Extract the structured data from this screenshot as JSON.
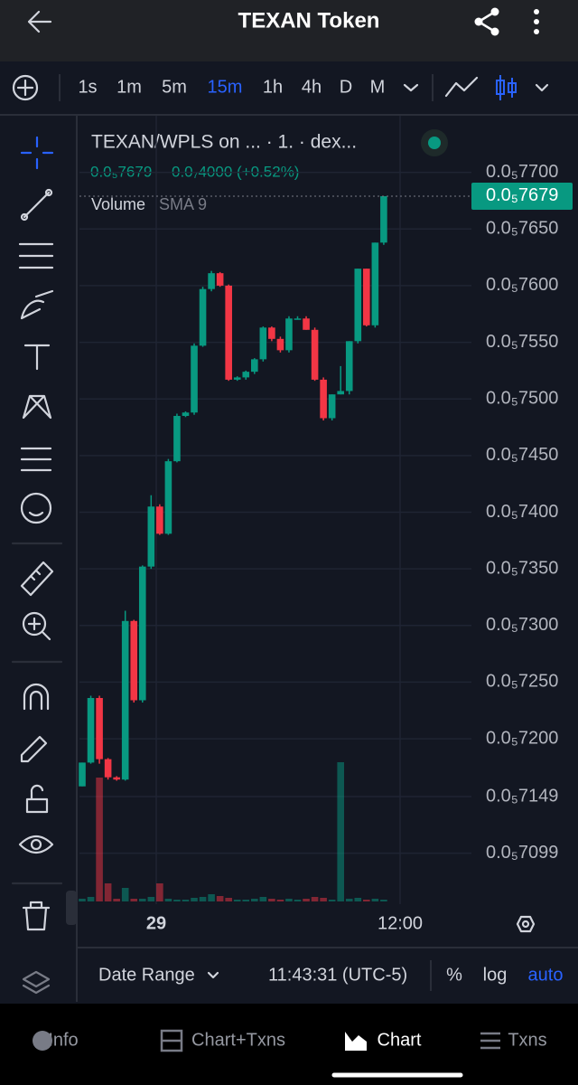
{
  "header": {
    "title": "TEXAN Token"
  },
  "toolbar": {
    "intervals": [
      "1s",
      "1m",
      "5m",
      "15m",
      "1h",
      "4h",
      "D",
      "M"
    ]
  },
  "chart_data": {
    "type": "candlestick",
    "title": "TEXAN/WPLS on ... · 1. · dex...",
    "change": "0.0₇4000 (+0.52%)",
    "indicator": "Volume",
    "indicator_setting": "SMA 9",
    "current_price": {
      "value": 7.679e-06,
      "label": "0.0₅7679"
    },
    "open": [
      7.158e-06,
      7.179e-06,
      7.236e-06,
      7.182e-06,
      7.166e-06,
      7.164e-06,
      7.304e-06,
      7.234e-06,
      7.352e-06,
      7.405e-06,
      7.381e-06,
      7.445e-06,
      7.485e-06,
      7.488e-06,
      7.547e-06,
      7.597e-06,
      7.611e-06,
      7.6e-06,
      7.517e-06,
      7.519e-06,
      7.524e-06,
      7.535e-06,
      7.563e-06,
      7.553e-06,
      7.543e-06,
      7.57e-06,
      7.571e-06,
      7.561e-06,
      7.517e-06,
      7.483e-06,
      7.504e-06,
      7.507e-06,
      7.551e-06,
      7.615e-06,
      7.565e-06,
      7.638e-06
    ],
    "high": [
      7.179e-06,
      7.238e-06,
      7.238e-06,
      7.183e-06,
      7.167e-06,
      7.313e-06,
      7.305e-06,
      7.353e-06,
      7.415e-06,
      7.407e-06,
      7.447e-06,
      7.487e-06,
      7.489e-06,
      7.549e-06,
      7.599e-06,
      7.613e-06,
      7.612e-06,
      7.601e-06,
      7.52e-06,
      7.525e-06,
      7.536e-06,
      7.564e-06,
      7.564e-06,
      7.555e-06,
      7.573e-06,
      7.573e-06,
      7.573e-06,
      7.563e-06,
      7.519e-06,
      7.504e-06,
      7.529e-06,
      7.551e-06,
      7.615e-06,
      7.615e-06,
      7.638e-06,
      7.679e-06
    ],
    "low": [
      7.158e-06,
      7.178e-06,
      7.178e-06,
      7.164e-06,
      7.163e-06,
      7.163e-06,
      7.232e-06,
      7.232e-06,
      7.35e-06,
      7.38e-06,
      7.38e-06,
      7.444e-06,
      7.484e-06,
      7.486e-06,
      7.546e-06,
      7.595e-06,
      7.599e-06,
      7.516e-06,
      7.516e-06,
      7.517e-06,
      7.522e-06,
      7.533e-06,
      7.551e-06,
      7.541e-06,
      7.541e-06,
      7.57e-06,
      7.561e-06,
      7.516e-06,
      7.481e-06,
      7.481e-06,
      7.504e-06,
      7.504e-06,
      7.549e-06,
      7.564e-06,
      7.563e-06,
      7.636e-06
    ],
    "close": [
      7.179e-06,
      7.236e-06,
      7.182e-06,
      7.166e-06,
      7.164e-06,
      7.304e-06,
      7.234e-06,
      7.352e-06,
      7.405e-06,
      7.381e-06,
      7.445e-06,
      7.485e-06,
      7.488e-06,
      7.547e-06,
      7.597e-06,
      7.611e-06,
      7.6e-06,
      7.517e-06,
      7.519e-06,
      7.524e-06,
      7.535e-06,
      7.563e-06,
      7.553e-06,
      7.543e-06,
      7.571e-06,
      7.571e-06,
      7.561e-06,
      7.517e-06,
      7.483e-06,
      7.504e-06,
      7.507e-06,
      7.551e-06,
      7.615e-06,
      7.565e-06,
      7.638e-06,
      7.679e-06
    ],
    "volume": [
      3,
      5,
      137,
      20,
      3,
      15,
      3,
      3,
      5,
      20,
      3,
      2,
      2,
      4,
      5,
      8,
      6,
      4,
      2,
      2,
      3,
      5,
      3,
      2,
      3,
      2,
      3,
      5,
      4,
      2,
      154,
      3,
      4,
      2,
      3,
      2
    ],
    "up_color": "#089981",
    "down_color": "#f23645",
    "ylim": [
      7.054e-06,
      7.75e-06
    ],
    "yticks": [
      {
        "value": 7.7e-06,
        "label": "0.0₅7700"
      },
      {
        "value": 7.65e-06,
        "label": "0.0₅7650"
      },
      {
        "value": 7.6e-06,
        "label": "0.0₅7600"
      },
      {
        "value": 7.55e-06,
        "label": "0.0₅7550"
      },
      {
        "value": 7.5e-06,
        "label": "0.0₅7500"
      },
      {
        "value": 7.45e-06,
        "label": "0.0₅7450"
      },
      {
        "value": 7.4e-06,
        "label": "0.0₅7400"
      },
      {
        "value": 7.35e-06,
        "label": "0.0₅7350"
      },
      {
        "value": 7.3e-06,
        "label": "0.0₅7300"
      },
      {
        "value": 7.25e-06,
        "label": "0.0₅7250"
      },
      {
        "value": 7.2e-06,
        "label": "0.0₅7200"
      },
      {
        "value": 7.149e-06,
        "label": "0.0₅7149"
      },
      {
        "value": 7.099e-06,
        "label": "0.0₅7099"
      }
    ],
    "x_labels": [
      "29",
      "12:00"
    ],
    "grid": true
  },
  "footer": {
    "date_range": "Date Range",
    "time": "11:43:31 (UTC-5)",
    "scale_options": [
      "%",
      "log",
      "auto"
    ]
  },
  "tabs": [
    "Info",
    "Chart+Txns",
    "Chart",
    "Txns"
  ]
}
